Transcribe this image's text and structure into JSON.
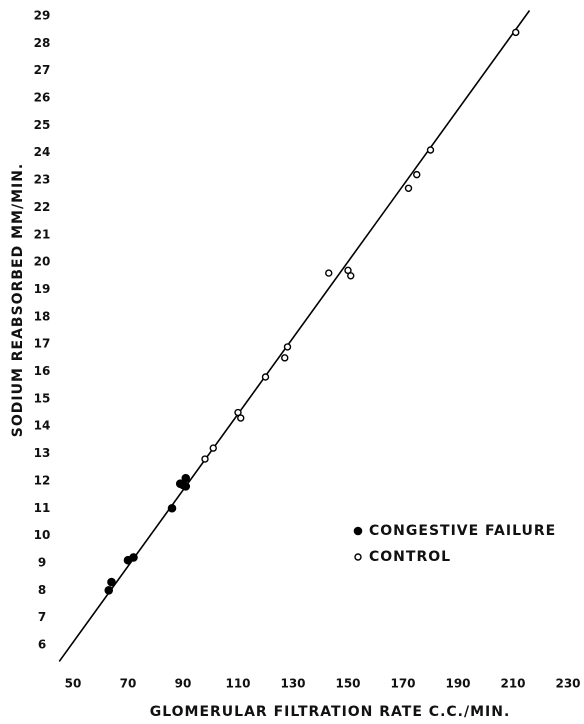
{
  "chart_data": {
    "type": "scatter",
    "xlabel": "GLOMERULAR FILTRATION RATE C.C./MIN.",
    "ylabel": "SODIUM REABSORBED MM/MIN.",
    "xlim": [
      50,
      230
    ],
    "xticks": [
      50,
      70,
      90,
      110,
      130,
      150,
      170,
      190,
      210,
      230
    ],
    "ylim": [
      6,
      29
    ],
    "yticks": [
      6,
      7,
      8,
      9,
      10,
      11,
      12,
      13,
      14,
      15,
      16,
      17,
      18,
      19,
      20,
      21,
      22,
      23,
      24,
      25,
      26,
      27,
      28,
      29
    ],
    "grid": false,
    "legend": "lower right",
    "fit_line": {
      "color": "#000000",
      "x": [
        45,
        216
      ],
      "values": [
        5.4,
        29.2
      ]
    },
    "series": [
      {
        "name": "CONGESTIVE FAILURE",
        "marker": "filled",
        "color": "#000000",
        "x": [
          63,
          64,
          70,
          72,
          86,
          89,
          90,
          91,
          91
        ],
        "values": [
          8.0,
          8.3,
          9.1,
          9.2,
          11.0,
          11.9,
          11.85,
          11.8,
          12.1
        ]
      },
      {
        "name": "CONTROL",
        "marker": "open",
        "color": "#000000",
        "x": [
          98,
          101,
          110,
          111,
          120,
          127,
          128,
          143,
          150,
          151,
          172,
          175,
          180,
          211
        ],
        "values": [
          12.8,
          13.2,
          14.5,
          14.3,
          15.8,
          16.5,
          16.9,
          19.6,
          19.7,
          19.5,
          22.7,
          23.2,
          24.1,
          28.4
        ]
      }
    ]
  }
}
